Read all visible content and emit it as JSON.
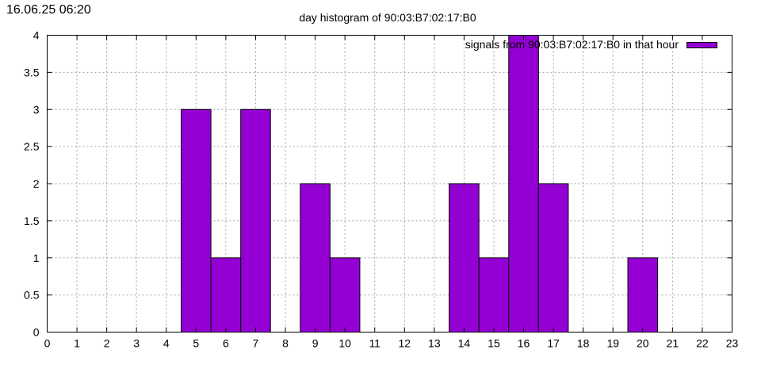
{
  "timestamp": "16.06.25 06:20",
  "chart_data": {
    "type": "bar",
    "title": "day histogram of 90:03:B7:02:17:B0",
    "xlabel": "",
    "ylabel": "",
    "xlim": [
      0,
      23
    ],
    "ylim": [
      0,
      4
    ],
    "x_ticks": [
      0,
      1,
      2,
      3,
      4,
      5,
      6,
      7,
      8,
      9,
      10,
      11,
      12,
      13,
      14,
      15,
      16,
      17,
      18,
      19,
      20,
      21,
      22,
      23
    ],
    "y_ticks": [
      0,
      0.5,
      1,
      1.5,
      2,
      2.5,
      3,
      3.5,
      4
    ],
    "grid": true,
    "legend_position": "top-right",
    "series": [
      {
        "name": "signals from 90:03:B7:02:17:B0 in that hour",
        "color": "#9400d3",
        "points": [
          {
            "hour": 5,
            "count": 3
          },
          {
            "hour": 6,
            "count": 1
          },
          {
            "hour": 7,
            "count": 3
          },
          {
            "hour": 9,
            "count": 2
          },
          {
            "hour": 10,
            "count": 1
          },
          {
            "hour": 14,
            "count": 2
          },
          {
            "hour": 15,
            "count": 1
          },
          {
            "hour": 16,
            "count": 4
          },
          {
            "hour": 17,
            "count": 2
          },
          {
            "hour": 20,
            "count": 1
          }
        ]
      }
    ]
  }
}
